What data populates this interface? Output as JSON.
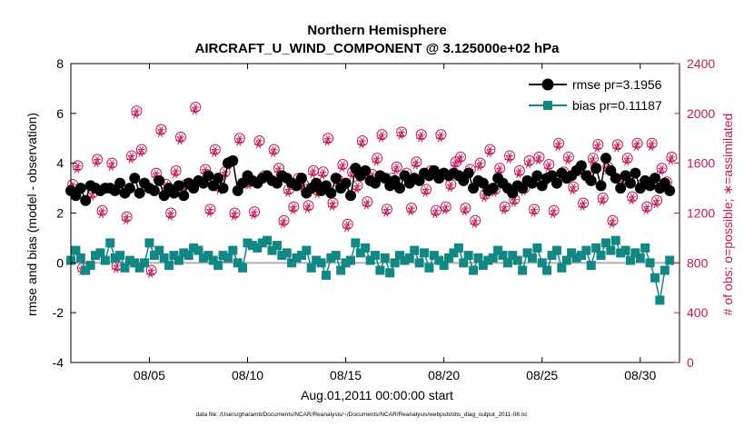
{
  "chart_data": {
    "type": "line",
    "title": "Northern Hemisphere",
    "subtitle": "AIRCRAFT_U_WIND_COMPONENT @ 3.125000e+02 hPa",
    "xlabel": "Aug.01,2011 00:00:00 start",
    "ylabel": "rmse and bias (model - observation)",
    "y2label": "# of obs: o=possible; ∗=assimilated",
    "footnote": "data file: /Users/gharamti/Documents/NCAR/Reanalysis/~/Documents/NCAR/Reanalysis/webpub/obs_diag_output_2011-08.nc",
    "xlim": [
      1,
      32
    ],
    "ylim": [
      -4,
      8
    ],
    "y2lim": [
      0,
      2400
    ],
    "xticks": [
      5,
      10,
      15,
      20,
      25,
      30
    ],
    "xtick_labels": [
      "08/05",
      "08/10",
      "08/15",
      "08/20",
      "08/25",
      "08/30"
    ],
    "yticks": [
      -4,
      -2,
      0,
      2,
      4,
      6,
      8
    ],
    "ytick_labels": [
      "-4",
      "-2",
      "0",
      "2",
      "4",
      "6",
      "8"
    ],
    "y2ticks": [
      0,
      400,
      800,
      1200,
      1600,
      2000,
      2400
    ],
    "y2tick_labels": [
      "0",
      "400",
      "800",
      "1200",
      "1600",
      "2000",
      "2400"
    ],
    "grid": false,
    "legend_position": "top-right",
    "zero_line": 0,
    "colors": {
      "rmse": "#000000",
      "bias": "#138784",
      "obs": "#c2185b",
      "zero": "#b0b0b0"
    },
    "series": [
      {
        "name": "rmse pr=3.1956",
        "axis": "left",
        "marker": "circle",
        "color": "#000000",
        "x": [
          1.0,
          1.25,
          1.5,
          1.75,
          2.0,
          2.25,
          2.5,
          2.75,
          3.0,
          3.25,
          3.5,
          3.75,
          4.0,
          4.25,
          4.5,
          4.75,
          5.0,
          5.25,
          5.5,
          5.75,
          6.0,
          6.25,
          6.5,
          6.75,
          7.0,
          7.25,
          7.5,
          7.75,
          8.0,
          8.25,
          8.5,
          8.75,
          9.0,
          9.25,
          9.5,
          9.75,
          10.0,
          10.25,
          10.5,
          10.75,
          11.0,
          11.25,
          11.5,
          11.75,
          12.0,
          12.25,
          12.5,
          12.75,
          13.0,
          13.25,
          13.5,
          13.75,
          14.0,
          14.25,
          14.5,
          14.75,
          15.0,
          15.25,
          15.5,
          15.75,
          16.0,
          16.25,
          16.5,
          16.75,
          17.0,
          17.25,
          17.5,
          17.75,
          18.0,
          18.25,
          18.5,
          18.75,
          19.0,
          19.25,
          19.5,
          19.75,
          20.0,
          20.25,
          20.5,
          20.75,
          21.0,
          21.25,
          21.5,
          21.75,
          22.0,
          22.25,
          22.5,
          22.75,
          23.0,
          23.25,
          23.5,
          23.75,
          24.0,
          24.25,
          24.5,
          24.75,
          25.0,
          25.25,
          25.5,
          25.75,
          26.0,
          26.25,
          26.5,
          26.75,
          27.0,
          27.25,
          27.5,
          27.75,
          28.0,
          28.25,
          28.5,
          28.75,
          29.0,
          29.25,
          29.5,
          29.75,
          30.0,
          30.25,
          30.5,
          30.75,
          31.0,
          31.25,
          31.5
        ],
        "values": [
          2.9,
          2.7,
          3.0,
          2.5,
          3.1,
          3.0,
          2.9,
          3.0,
          3.0,
          2.9,
          3.2,
          2.8,
          3.0,
          3.4,
          2.8,
          3.2,
          3.0,
          2.9,
          3.3,
          2.7,
          3.0,
          2.8,
          3.1,
          2.7,
          3.2,
          3.0,
          3.3,
          3.2,
          3.5,
          3.1,
          3.4,
          3.0,
          4.0,
          4.1,
          2.9,
          3.2,
          3.5,
          3.3,
          3.2,
          3.4,
          3.5,
          3.3,
          3.2,
          3.5,
          3.4,
          3.2,
          3.1,
          3.4,
          2.8,
          3.0,
          3.2,
          2.9,
          3.1,
          2.8,
          3.4,
          3.0,
          3.2,
          2.7,
          3.8,
          3.5,
          3.7,
          3.3,
          3.2,
          3.5,
          3.4,
          3.1,
          3.3,
          3.0,
          3.5,
          3.2,
          3.4,
          3.3,
          3.6,
          3.5,
          3.7,
          3.4,
          3.6,
          3.5,
          3.6,
          3.5,
          3.3,
          3.6,
          3.0,
          3.3,
          3.2,
          2.9,
          3.0,
          3.4,
          3.2,
          3.0,
          2.8,
          3.1,
          3.0,
          3.3,
          3.2,
          3.5,
          3.1,
          3.4,
          3.5,
          3.2,
          3.6,
          3.4,
          3.5,
          3.7,
          3.9,
          3.5,
          3.3,
          3.8,
          3.1,
          4.2,
          3.7,
          3.4,
          3.0,
          3.5,
          3.2,
          3.6,
          3.0,
          3.3,
          3.1,
          3.4,
          3.0,
          3.2,
          2.9
        ]
      },
      {
        "name": "bias pr=0.11187",
        "axis": "left",
        "marker": "square",
        "color": "#138784",
        "x": [
          1.0,
          1.25,
          1.5,
          1.75,
          2.0,
          2.25,
          2.5,
          2.75,
          3.0,
          3.25,
          3.5,
          3.75,
          4.0,
          4.25,
          4.5,
          4.75,
          5.0,
          5.25,
          5.5,
          5.75,
          6.0,
          6.25,
          6.5,
          6.75,
          7.0,
          7.25,
          7.5,
          7.75,
          8.0,
          8.25,
          8.5,
          8.75,
          9.0,
          9.25,
          9.5,
          9.75,
          10.0,
          10.25,
          10.5,
          10.75,
          11.0,
          11.25,
          11.5,
          11.75,
          12.0,
          12.25,
          12.5,
          12.75,
          13.0,
          13.25,
          13.5,
          13.75,
          14.0,
          14.25,
          14.5,
          14.75,
          15.0,
          15.25,
          15.5,
          15.75,
          16.0,
          16.25,
          16.5,
          16.75,
          17.0,
          17.25,
          17.5,
          17.75,
          18.0,
          18.25,
          18.5,
          18.75,
          19.0,
          19.25,
          19.5,
          19.75,
          20.0,
          20.25,
          20.5,
          20.75,
          21.0,
          21.25,
          21.5,
          21.75,
          22.0,
          22.25,
          22.5,
          22.75,
          23.0,
          23.25,
          23.5,
          23.75,
          24.0,
          24.25,
          24.5,
          24.75,
          25.0,
          25.25,
          25.5,
          25.75,
          26.0,
          26.25,
          26.5,
          26.75,
          27.0,
          27.25,
          27.5,
          27.75,
          28.0,
          28.25,
          28.5,
          28.75,
          29.0,
          29.25,
          29.5,
          29.75,
          30.0,
          30.25,
          30.5,
          30.75,
          31.0,
          31.25,
          31.5
        ],
        "values": [
          0.1,
          0.5,
          0.2,
          -0.3,
          -0.1,
          0.3,
          0.4,
          0.1,
          0.8,
          0.2,
          0.3,
          -0.2,
          0.1,
          0.0,
          -0.2,
          0.0,
          0.8,
          0.3,
          0.5,
          0.2,
          -0.1,
          0.3,
          0.1,
          0.4,
          0.3,
          0.6,
          0.5,
          0.2,
          0.3,
          0.1,
          -0.1,
          0.3,
          0.2,
          0.5,
          0.0,
          -0.2,
          0.8,
          0.7,
          0.6,
          0.8,
          0.9,
          0.5,
          0.7,
          0.3,
          0.4,
          0.0,
          0.2,
          0.3,
          0.5,
          -0.2,
          0.1,
          0.0,
          -0.5,
          0.2,
          0.3,
          -0.3,
          0.0,
          0.1,
          0.8,
          0.4,
          0.6,
          0.1,
          0.3,
          -0.3,
          0.2,
          -0.4,
          0.0,
          0.3,
          0.1,
          0.2,
          0.5,
          0.0,
          0.4,
          -0.2,
          0.3,
          0.1,
          -0.1,
          0.2,
          0.4,
          0.6,
          0.0,
          0.3,
          -0.3,
          0.2,
          -0.1,
          0.1,
          0.2,
          0.5,
          0.3,
          0.0,
          0.3,
          0.1,
          -0.3,
          0.4,
          0.2,
          0.6,
          0.0,
          -0.3,
          0.3,
          0.5,
          -0.2,
          0.1,
          0.4,
          0.2,
          0.3,
          0.5,
          -0.1,
          0.6,
          0.3,
          0.8,
          0.5,
          0.9,
          0.4,
          0.5,
          0.1,
          0.4,
          0.2,
          0.6,
          0.0,
          -0.6,
          -1.5,
          -0.3,
          0.1
        ]
      },
      {
        "name": "possible",
        "axis": "right",
        "marker": "circle-open",
        "color": "#c2185b",
        "x": [
          1.1,
          1.35,
          1.6,
          2.1,
          2.35,
          2.6,
          3.1,
          3.35,
          3.85,
          4.1,
          4.35,
          4.6,
          5.1,
          5.35,
          5.6,
          5.85,
          6.1,
          6.35,
          6.6,
          6.85,
          7.35,
          7.85,
          8.1,
          8.35,
          8.6,
          8.85,
          9.1,
          9.35,
          9.6,
          10.1,
          10.35,
          10.6,
          10.85,
          11.35,
          11.6,
          11.85,
          12.1,
          12.35,
          12.6,
          12.85,
          13.1,
          13.35,
          13.6,
          13.85,
          14.1,
          14.35,
          14.6,
          14.85,
          15.1,
          15.35,
          15.6,
          15.85,
          16.1,
          16.35,
          16.6,
          16.85,
          17.1,
          17.35,
          17.6,
          17.85,
          18.1,
          18.35,
          18.6,
          18.85,
          19.1,
          19.35,
          19.6,
          19.85,
          20.1,
          20.35,
          20.6,
          20.85,
          21.1,
          21.35,
          21.6,
          21.85,
          22.1,
          22.35,
          22.6,
          22.85,
          23.1,
          23.35,
          23.6,
          23.85,
          24.1,
          24.35,
          24.6,
          24.85,
          25.1,
          25.35,
          25.6,
          25.85,
          26.1,
          26.35,
          26.6,
          26.85,
          27.1,
          27.35,
          27.6,
          27.85,
          28.1,
          28.35,
          28.6,
          28.85,
          29.1,
          29.35,
          29.6,
          29.85,
          30.1,
          30.35,
          30.6,
          30.85,
          31.1,
          31.35,
          31.6
        ],
        "values": [
          1430,
          1580,
          760,
          1360,
          1630,
          1220,
          1600,
          780,
          1170,
          1660,
          2020,
          1710,
          740,
          1520,
          1870,
          1430,
          1200,
          1540,
          1810,
          1430,
          2050,
          1550,
          1230,
          1710,
          1410,
          1530,
          1610,
          1200,
          1800,
          1450,
          1210,
          1780,
          1500,
          1710,
          1560,
          1140,
          1390,
          1250,
          1480,
          1430,
          1260,
          1540,
          1380,
          1530,
          1800,
          1280,
          1470,
          1590,
          1110,
          1530,
          1420,
          1780,
          1290,
          1510,
          1640,
          1830,
          1230,
          1480,
          1570,
          1850,
          1520,
          1240,
          1610,
          1830,
          1390,
          1540,
          1220,
          1830,
          1250,
          1430,
          1610,
          1650,
          1240,
          1550,
          1140,
          1600,
          1350,
          1710,
          1390,
          1560,
          1250,
          1660,
          1310,
          1540,
          1400,
          1620,
          1230,
          1650,
          1460,
          1590,
          1220,
          1760,
          1530,
          1650,
          1410,
          1550,
          1280,
          1500,
          1640,
          1750,
          1320,
          1570,
          1140,
          1750,
          1470,
          1640,
          1330,
          1760,
          1430,
          1250,
          1760,
          1300,
          1560,
          1450,
          1650
        ],
        "note": "approximate, read from right axis"
      },
      {
        "name": "assimilated",
        "axis": "right",
        "marker": "asterisk",
        "color": "#c2185b",
        "x": [
          1.05,
          1.3,
          1.55,
          2.05,
          2.3,
          2.55,
          3.05,
          3.3,
          3.8,
          4.05,
          4.3,
          4.55,
          5.05,
          5.3,
          5.55,
          5.8,
          6.05,
          6.3,
          6.55,
          6.8,
          7.3,
          7.8,
          8.05,
          8.3,
          8.55,
          8.8,
          9.05,
          9.3,
          9.55,
          10.05,
          10.3,
          10.55,
          10.8,
          11.3,
          11.55,
          11.8,
          12.05,
          12.3,
          12.55,
          12.8,
          13.05,
          13.3,
          13.55,
          13.8,
          14.05,
          14.3,
          14.55,
          14.8,
          15.05,
          15.3,
          15.55,
          15.8,
          16.05,
          16.3,
          16.55,
          16.8,
          17.05,
          17.3,
          17.55,
          17.8,
          18.05,
          18.3,
          18.55,
          18.8,
          19.05,
          19.3,
          19.55,
          19.8,
          20.05,
          20.3,
          20.55,
          20.8,
          21.05,
          21.3,
          21.55,
          21.8,
          22.05,
          22.3,
          22.55,
          22.8,
          23.05,
          23.3,
          23.55,
          23.8,
          24.05,
          24.3,
          24.55,
          24.8,
          25.05,
          25.3,
          25.55,
          25.8,
          26.05,
          26.3,
          26.55,
          26.8,
          27.05,
          27.3,
          27.55,
          27.8,
          28.05,
          28.3,
          28.55,
          28.8,
          29.05,
          29.3,
          29.55,
          29.8,
          30.05,
          30.3,
          30.55,
          30.8,
          31.05,
          31.3,
          31.55
        ],
        "values": [
          1400,
          1550,
          730,
          1330,
          1600,
          1190,
          1570,
          750,
          1140,
          1630,
          1990,
          1680,
          710,
          1490,
          1840,
          1400,
          1170,
          1510,
          1780,
          1400,
          2020,
          1520,
          1200,
          1680,
          1380,
          1500,
          1580,
          1170,
          1770,
          1420,
          1180,
          1750,
          1470,
          1680,
          1530,
          1110,
          1360,
          1220,
          1450,
          1400,
          1230,
          1510,
          1350,
          1500,
          1770,
          1250,
          1440,
          1560,
          1080,
          1500,
          1390,
          1750,
          1260,
          1480,
          1610,
          1800,
          1200,
          1450,
          1540,
          1820,
          1490,
          1210,
          1580,
          1800,
          1360,
          1510,
          1190,
          1800,
          1220,
          1400,
          1580,
          1620,
          1210,
          1520,
          1110,
          1570,
          1320,
          1680,
          1360,
          1530,
          1220,
          1630,
          1280,
          1510,
          1370,
          1590,
          1200,
          1620,
          1430,
          1560,
          1190,
          1730,
          1500,
          1620,
          1380,
          1520,
          1250,
          1470,
          1610,
          1720,
          1290,
          1540,
          1110,
          1720,
          1440,
          1610,
          1300,
          1730,
          1400,
          1220,
          1730,
          1270,
          1530,
          1420,
          1620
        ],
        "note": "approximate, read from right axis"
      }
    ]
  }
}
